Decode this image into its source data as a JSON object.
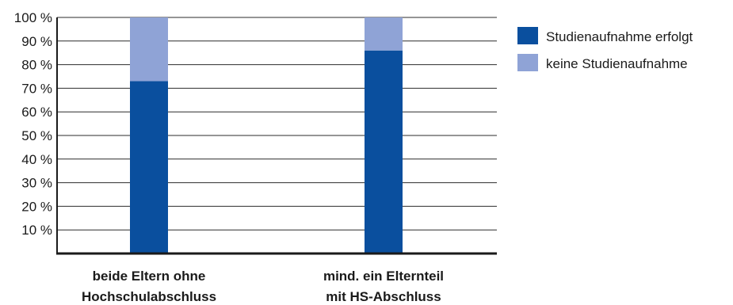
{
  "chart_data": {
    "type": "bar",
    "stacked": true,
    "categories": [
      [
        "beide Eltern ohne",
        "Hochschulabschluss"
      ],
      [
        "mind. ein Elternteil",
        "mit HS-Abschluss"
      ]
    ],
    "series": [
      {
        "name": "Studienaufnahme erfolgt",
        "values": [
          73,
          86
        ],
        "color": "#0a4f9e"
      },
      {
        "name": "keine Studienaufnahme",
        "values": [
          27,
          14
        ],
        "color": "#8fa3d6"
      }
    ],
    "ylim": [
      0,
      100
    ],
    "yticks": [
      10,
      20,
      30,
      40,
      50,
      60,
      70,
      80,
      90,
      100
    ],
    "ytick_labels": [
      "10 %",
      "20 %",
      "30 %",
      "40 %",
      "50 %",
      "60 %",
      "70 %",
      "80 %",
      "90 %",
      "100 %"
    ],
    "grid": true,
    "legend": "top-right",
    "title": "",
    "xlabel": "",
    "ylabel": ""
  }
}
